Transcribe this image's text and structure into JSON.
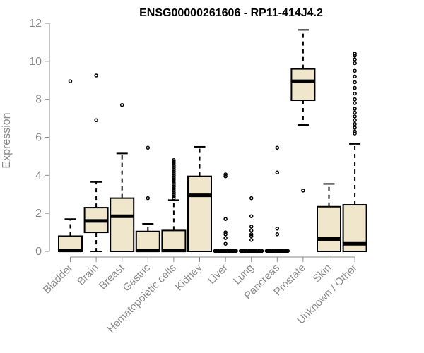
{
  "chart_data": {
    "type": "boxplot",
    "title": "ENSG00000261606 - RP11-414J4.2",
    "ylabel": "Expression",
    "xlabel": "",
    "ylim": [
      0,
      12
    ],
    "yticks": [
      0,
      2,
      4,
      6,
      8,
      10,
      12
    ],
    "box_color": "#efe6cc",
    "axis_color": "#8a8a8a",
    "categories": [
      "Bladder",
      "Brain",
      "Breast",
      "Gastric",
      "Hematopoietic cells",
      "Kidney",
      "Liver",
      "Lung",
      "Pancreas",
      "Prostate",
      "Skin",
      "Unknown / Other"
    ],
    "boxes": [
      {
        "q1": 0,
        "median": 0.05,
        "q3": 0.8,
        "whisker_low": 0,
        "whisker_high": 1.7,
        "outliers": [
          8.95
        ]
      },
      {
        "q1": 1.0,
        "median": 1.6,
        "q3": 2.3,
        "whisker_low": 0,
        "whisker_high": 3.65,
        "outliers": [
          6.9,
          9.25
        ]
      },
      {
        "q1": 0,
        "median": 1.85,
        "q3": 2.8,
        "whisker_low": 0,
        "whisker_high": 5.15,
        "outliers": [
          7.7
        ]
      },
      {
        "q1": 0,
        "median": 0.05,
        "q3": 1.05,
        "whisker_low": 0,
        "whisker_high": 1.45,
        "outliers": [
          2.8,
          5.45
        ]
      },
      {
        "q1": 0,
        "median": 0.05,
        "q3": 1.1,
        "whisker_low": 0,
        "whisker_high": 2.7,
        "outliers": [
          2.8,
          2.9,
          3.0,
          3.1,
          3.2,
          3.3,
          3.4,
          3.5,
          3.6,
          3.7,
          3.8,
          3.9,
          4.0,
          4.1,
          4.2,
          4.3,
          4.4,
          4.5,
          4.6,
          4.7,
          4.8
        ]
      },
      {
        "q1": 0,
        "median": 2.95,
        "q3": 3.95,
        "whisker_low": 0,
        "whisker_high": 5.5,
        "outliers": []
      },
      {
        "q1": 0,
        "median": 0.02,
        "q3": 0.05,
        "whisker_low": 0,
        "whisker_high": 0.1,
        "outliers": [
          0.4,
          0.7,
          0.9,
          1.0,
          1.7,
          3.95,
          4.05
        ]
      },
      {
        "q1": 0,
        "median": 0.02,
        "q3": 0.05,
        "whisker_low": 0,
        "whisker_high": 0.1,
        "outliers": [
          0.6,
          0.8,
          0.9,
          1.1,
          1.3,
          1.85,
          2.8
        ]
      },
      {
        "q1": 0,
        "median": 0.02,
        "q3": 0.05,
        "whisker_low": 0,
        "whisker_high": 0.1,
        "outliers": [
          0.9,
          1.2,
          4.15,
          5.45
        ]
      },
      {
        "q1": 7.95,
        "median": 8.95,
        "q3": 9.6,
        "whisker_low": 6.65,
        "whisker_high": 11.65,
        "outliers": [
          3.2
        ]
      },
      {
        "q1": 0,
        "median": 0.65,
        "q3": 2.35,
        "whisker_low": 0,
        "whisker_high": 3.55,
        "outliers": []
      },
      {
        "q1": 0,
        "median": 0.4,
        "q3": 2.45,
        "whisker_low": 0,
        "whisker_high": 5.65,
        "outliers": [
          6.2,
          6.3,
          6.5,
          6.7,
          6.9,
          7.1,
          7.3,
          7.5,
          7.8,
          8.0,
          8.3,
          8.6,
          8.9,
          9.2,
          9.5,
          9.9,
          10.1,
          10.3,
          10.4
        ]
      }
    ]
  }
}
